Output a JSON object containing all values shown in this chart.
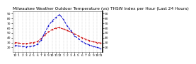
{
  "title": "Milwaukee Weather Outdoor Temperature (vs) THSW Index per Hour (Last 24 Hours)",
  "hours": [
    0,
    1,
    2,
    3,
    4,
    5,
    6,
    7,
    8,
    9,
    10,
    11,
    12,
    13,
    14,
    15,
    16,
    17,
    18,
    19,
    20,
    21,
    22,
    23
  ],
  "temp": [
    30,
    29,
    28,
    28,
    29,
    30,
    32,
    38,
    46,
    52,
    57,
    60,
    61,
    58,
    55,
    52,
    48,
    44,
    40,
    37,
    34,
    32,
    30,
    29
  ],
  "thsw": [
    24,
    23,
    22,
    21,
    22,
    23,
    26,
    35,
    50,
    65,
    75,
    82,
    88,
    78,
    65,
    55,
    44,
    38,
    32,
    28,
    25,
    22,
    20,
    18
  ],
  "temp_color": "#cc0000",
  "thsw_color": "#0000cc",
  "ylim_min": 10,
  "ylim_max": 95,
  "ytick_vals": [
    20,
    30,
    40,
    50,
    60,
    70,
    80,
    90
  ],
  "ytick_labels": [
    "20",
    "30",
    "40",
    "50",
    "60",
    "70",
    "80",
    "90"
  ],
  "xtick_positions": [
    0,
    1,
    2,
    3,
    4,
    5,
    6,
    7,
    8,
    9,
    10,
    11,
    12,
    13,
    14,
    15,
    16,
    17,
    18,
    19,
    20,
    21,
    22,
    23
  ],
  "xtick_labels": [
    "12",
    "1",
    "2",
    "3",
    "4",
    "5",
    "6",
    "7",
    "8",
    "9",
    "10",
    "11",
    "12",
    "1",
    "2",
    "3",
    "4",
    "5",
    "6",
    "7",
    "8",
    "9",
    "10",
    "11"
  ],
  "background_color": "#ffffff",
  "grid_color": "#aaaaaa",
  "title_fontsize": 4.2,
  "tick_fontsize": 3.2,
  "line_width": 0.7,
  "marker_size": 1.2
}
